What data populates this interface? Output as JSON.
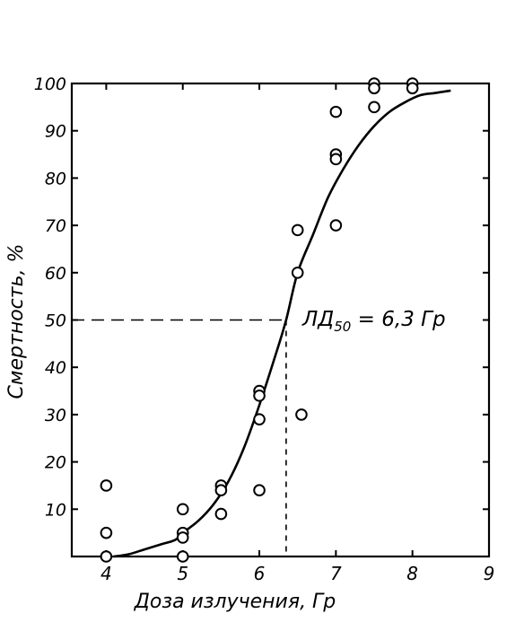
{
  "chart_data": {
    "type": "scatter",
    "xlabel": "Доза излучения, Гр",
    "ylabel": "Смертность, %",
    "xlim": [
      3.55,
      9
    ],
    "ylim": [
      0,
      100
    ],
    "x_ticks": [
      "4",
      "5",
      "6",
      "7",
      "8",
      "9"
    ],
    "y_ticks": [
      "10",
      "20",
      "30",
      "40",
      "50",
      "60",
      "70",
      "80",
      "90",
      "100"
    ],
    "grid": false,
    "annotation": {
      "prefix": "ЛД",
      "subscript": "50",
      "suffix": " = 6,3 Гр",
      "ld50_x": 6.35,
      "ld50_y": 50
    },
    "points": [
      {
        "x": 4.0,
        "y": 15
      },
      {
        "x": 4.0,
        "y": 5
      },
      {
        "x": 4.0,
        "y": 0
      },
      {
        "x": 5.0,
        "y": 10
      },
      {
        "x": 5.0,
        "y": 5
      },
      {
        "x": 5.0,
        "y": 4
      },
      {
        "x": 5.0,
        "y": 0
      },
      {
        "x": 5.5,
        "y": 15
      },
      {
        "x": 5.5,
        "y": 14
      },
      {
        "x": 5.5,
        "y": 9
      },
      {
        "x": 6.0,
        "y": 35
      },
      {
        "x": 6.0,
        "y": 34
      },
      {
        "x": 6.0,
        "y": 29
      },
      {
        "x": 6.0,
        "y": 14
      },
      {
        "x": 6.5,
        "y": 69
      },
      {
        "x": 6.5,
        "y": 60
      },
      {
        "x": 6.55,
        "y": 30
      },
      {
        "x": 7.0,
        "y": 94
      },
      {
        "x": 7.0,
        "y": 85
      },
      {
        "x": 7.0,
        "y": 84
      },
      {
        "x": 7.0,
        "y": 70
      },
      {
        "x": 7.5,
        "y": 100
      },
      {
        "x": 7.5,
        "y": 99
      },
      {
        "x": 7.5,
        "y": 95
      },
      {
        "x": 8.0,
        "y": 100
      },
      {
        "x": 8.0,
        "y": 99
      }
    ],
    "curve": [
      [
        4.1,
        0
      ],
      [
        4.3,
        0.5
      ],
      [
        4.5,
        1.5
      ],
      [
        4.7,
        2.5
      ],
      [
        4.9,
        3.5
      ],
      [
        5.0,
        5
      ],
      [
        5.2,
        7.5
      ],
      [
        5.4,
        11
      ],
      [
        5.6,
        16
      ],
      [
        5.8,
        23
      ],
      [
        6.0,
        32
      ],
      [
        6.2,
        42
      ],
      [
        6.35,
        50
      ],
      [
        6.5,
        60
      ],
      [
        6.7,
        68
      ],
      [
        6.9,
        76
      ],
      [
        7.1,
        82
      ],
      [
        7.3,
        87
      ],
      [
        7.5,
        91
      ],
      [
        7.7,
        94
      ],
      [
        7.9,
        96
      ],
      [
        8.1,
        97.5
      ],
      [
        8.3,
        98
      ],
      [
        8.5,
        98.5
      ]
    ]
  }
}
